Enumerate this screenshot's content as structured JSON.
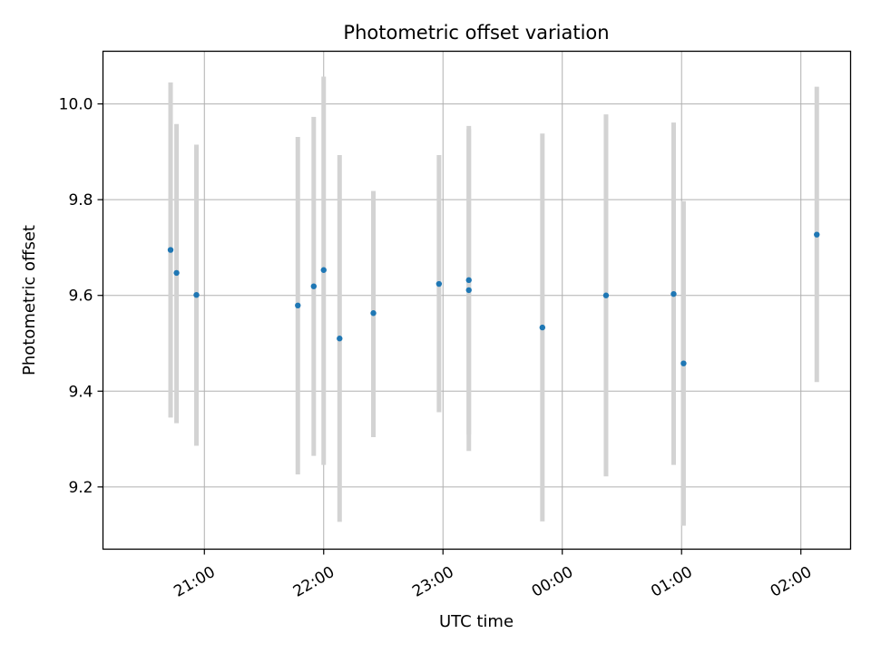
{
  "chart_data": {
    "type": "scatter",
    "title": "Photometric offset variation",
    "xlabel": "UTC time",
    "ylabel": "Photometric offset",
    "x_axis": {
      "kind": "time",
      "range": [
        "20:09",
        "02:25"
      ],
      "ticks": [
        "21:00",
        "22:00",
        "23:00",
        "00:00",
        "01:00",
        "02:00"
      ],
      "tick_label_rotation": "30deg"
    },
    "y_axis": {
      "range": [
        9.07,
        10.11
      ],
      "ticks": [
        "9.2",
        "9.4",
        "9.6",
        "9.8",
        "10.0"
      ]
    },
    "grid": true,
    "marker_color": "#1f77b4",
    "errorbar_color": "#d3d3d3",
    "series": [
      {
        "points": [
          {
            "x": "20:43",
            "y": 9.695,
            "ymin": 9.345,
            "ymax": 10.045
          },
          {
            "x": "20:46",
            "y": 9.647,
            "ymin": 9.333,
            "ymax": 9.958
          },
          {
            "x": "20:56",
            "y": 9.601,
            "ymin": 9.286,
            "ymax": 9.915
          },
          {
            "x": "21:47",
            "y": 9.579,
            "ymin": 9.226,
            "ymax": 9.931
          },
          {
            "x": "21:55",
            "y": 9.619,
            "ymin": 9.265,
            "ymax": 9.973
          },
          {
            "x": "22:00",
            "y": 9.653,
            "ymin": 9.246,
            "ymax": 10.057
          },
          {
            "x": "22:08",
            "y": 9.51,
            "ymin": 9.127,
            "ymax": 9.893
          },
          {
            "x": "22:25",
            "y": 9.563,
            "ymin": 9.304,
            "ymax": 9.818
          },
          {
            "x": "22:58",
            "y": 9.624,
            "ymin": 9.356,
            "ymax": 9.893
          },
          {
            "x": "23:13",
            "y": 9.632,
            "ymin": 9.31,
            "ymax": 9.954
          },
          {
            "x": "23:13",
            "y": 9.611,
            "ymin": 9.275,
            "ymax": 9.947
          },
          {
            "x": "23:50",
            "y": 9.533,
            "ymin": 9.128,
            "ymax": 9.938
          },
          {
            "x": "00:22",
            "y": 9.6,
            "ymin": 9.222,
            "ymax": 9.978
          },
          {
            "x": "00:56",
            "y": 9.603,
            "ymin": 9.246,
            "ymax": 9.961
          },
          {
            "x": "01:01",
            "y": 9.458,
            "ymin": 9.119,
            "ymax": 9.797
          },
          {
            "x": "02:08",
            "y": 9.727,
            "ymin": 9.419,
            "ymax": 10.036
          }
        ]
      }
    ]
  }
}
